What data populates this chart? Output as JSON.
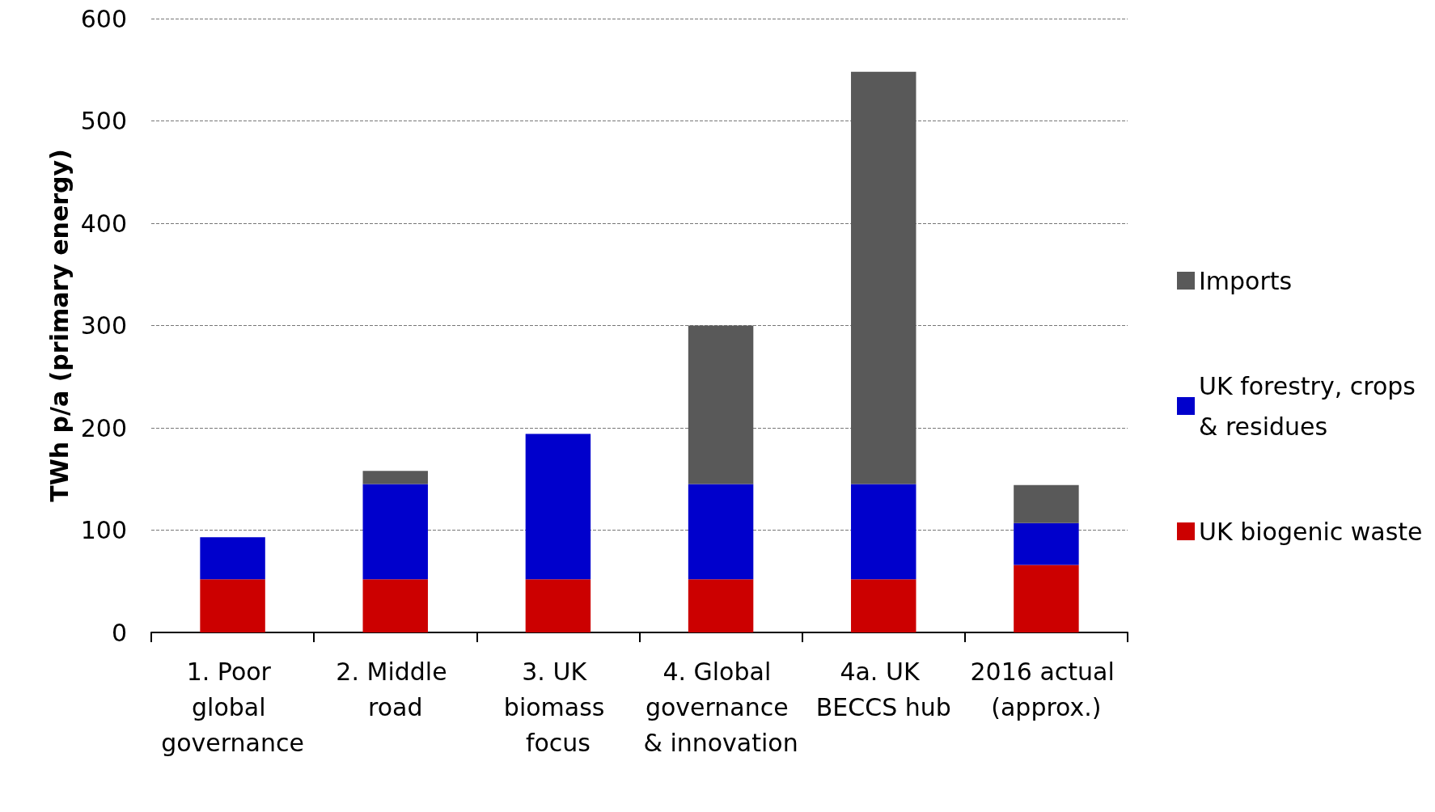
{
  "chart_data": {
    "type": "bar",
    "stacked": true,
    "ylabel": "TWh p/a (primary energy)",
    "categories": [
      "1. Poor global governance",
      "2. Middle road",
      "3. UK biomass focus",
      "4. Global governance & innovation",
      "4a. UK BECCS hub",
      "2016 actual (approx.)"
    ],
    "series": [
      {
        "name": "UK biogenic waste",
        "color": "#cc0000",
        "values": [
          52,
          52,
          52,
          52,
          52,
          66
        ]
      },
      {
        "name": "UK forestry, crops & residues",
        "color": "#0000cc",
        "values": [
          41,
          93,
          142,
          93,
          93,
          41
        ]
      },
      {
        "name": "Imports",
        "color": "#595959",
        "values": [
          null,
          13,
          null,
          155,
          403,
          37
        ]
      }
    ],
    "ylim": [
      0,
      600
    ],
    "yticks": [
      0,
      100,
      200,
      300,
      400,
      500,
      600
    ],
    "grid": "y",
    "legend": "right"
  }
}
